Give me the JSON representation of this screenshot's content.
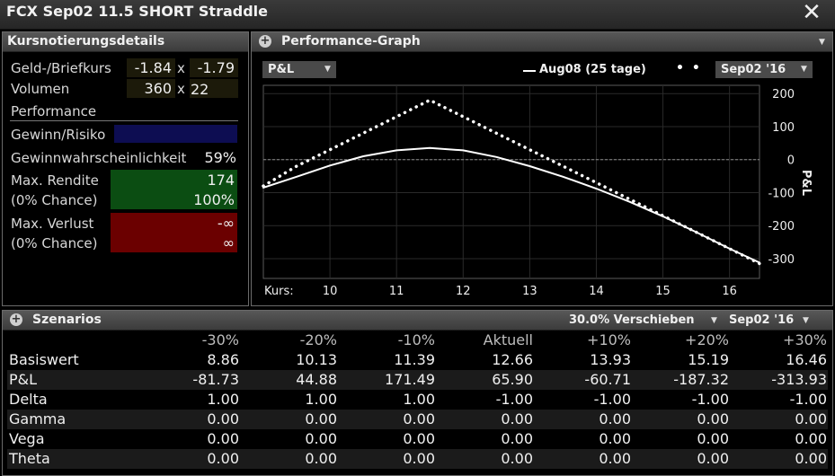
{
  "window": {
    "title": "FCX Sep02 11.5 SHORT Straddle"
  },
  "quote_panel": {
    "title": "Kursnotierungsdetails",
    "bid_ask_label": "Geld-/Briefkurs",
    "bid": "-1.84",
    "ask": "-1.79",
    "x": "x",
    "volume_label": "Volumen",
    "bid_size": "360",
    "ask_size": "22",
    "performance_label": "Performance",
    "gain_risk_label": "Gewinn/Risiko",
    "gain_risk_value": "",
    "probability_label": "Gewinnwahrscheinlichkeit",
    "probability_value": "59%",
    "max_return_label": "Max. Rendite",
    "max_return_value": "174",
    "max_return_chance_label": "(0% Chance)",
    "max_return_chance_value": "100%",
    "max_loss_label": "Max. Verlust",
    "max_loss_value": "-∞",
    "max_loss_chance_label": "(0% Chance)",
    "max_loss_chance_value": "∞",
    "colors": {
      "gain_risk_bg": "#0d0d52",
      "return_bg": "#0b4d12",
      "loss_bg": "#6b0000"
    }
  },
  "graph_panel": {
    "title": "Performance-Graph",
    "metric_dropdown": "P&L",
    "legend_line_label": "Aug08 (25 tage)",
    "expiry_dropdown": "Sep02 '16"
  },
  "chart_data": {
    "type": "line",
    "xlabel": "Kurs:",
    "ylabel": "P&L",
    "xlim": [
      9.0,
      16.45
    ],
    "ylim": [
      -360,
      225
    ],
    "x_ticks": [
      10,
      11,
      12,
      13,
      14,
      15,
      16
    ],
    "y_ticks": [
      200,
      100,
      0,
      -100,
      -200,
      -300
    ],
    "series": [
      {
        "name": "Aug08 (25 tage)",
        "style": "solid",
        "x": [
          9.0,
          9.5,
          10.0,
          10.5,
          11.0,
          11.5,
          12.0,
          12.5,
          13.0,
          13.5,
          14.0,
          14.5,
          15.0,
          15.5,
          16.0,
          16.45
        ],
        "y": [
          -85,
          -52,
          -18,
          10,
          28,
          35,
          28,
          8,
          -20,
          -52,
          -88,
          -128,
          -172,
          -220,
          -270,
          -312
        ]
      },
      {
        "name": "Sep02 '16",
        "style": "dotted",
        "x": [
          9.0,
          9.5,
          10.0,
          10.5,
          11.0,
          11.5,
          12.0,
          12.5,
          13.0,
          13.5,
          14.0,
          14.5,
          15.0,
          15.5,
          16.0,
          16.45
        ],
        "y": [
          -80,
          -20,
          30,
          80,
          130,
          180,
          130,
          80,
          30,
          -20,
          -70,
          -120,
          -170,
          -220,
          -270,
          -315
        ]
      }
    ],
    "colors": {
      "line": "#ffffff",
      "zero_line": "#8a8a8a",
      "grid": "#2a2a2a"
    }
  },
  "scenario_panel": {
    "title": "Szenarios",
    "shift_dropdown": "30.0% Verschieben",
    "expiry_dropdown": "Sep02 '16",
    "columns": [
      "-30%",
      "-20%",
      "-10%",
      "Aktuell",
      "+10%",
      "+20%",
      "+30%"
    ],
    "rows": [
      {
        "label": "Basiswert",
        "values": [
          "8.86",
          "10.13",
          "11.39",
          "12.66",
          "13.93",
          "15.19",
          "16.46"
        ]
      },
      {
        "label": "P&L",
        "values": [
          "-81.73",
          "44.88",
          "171.49",
          "65.90",
          "-60.71",
          "-187.32",
          "-313.93"
        ]
      },
      {
        "label": "Delta",
        "values": [
          "1.00",
          "1.00",
          "1.00",
          "-1.00",
          "-1.00",
          "-1.00",
          "-1.00"
        ]
      },
      {
        "label": "Gamma",
        "values": [
          "0.00",
          "0.00",
          "0.00",
          "0.00",
          "0.00",
          "0.00",
          "0.00"
        ]
      },
      {
        "label": "Vega",
        "values": [
          "0.00",
          "0.00",
          "0.00",
          "0.00",
          "0.00",
          "0.00",
          "0.00"
        ]
      },
      {
        "label": "Theta",
        "values": [
          "0.00",
          "0.00",
          "0.00",
          "0.00",
          "0.00",
          "0.00",
          "0.00"
        ]
      }
    ]
  }
}
